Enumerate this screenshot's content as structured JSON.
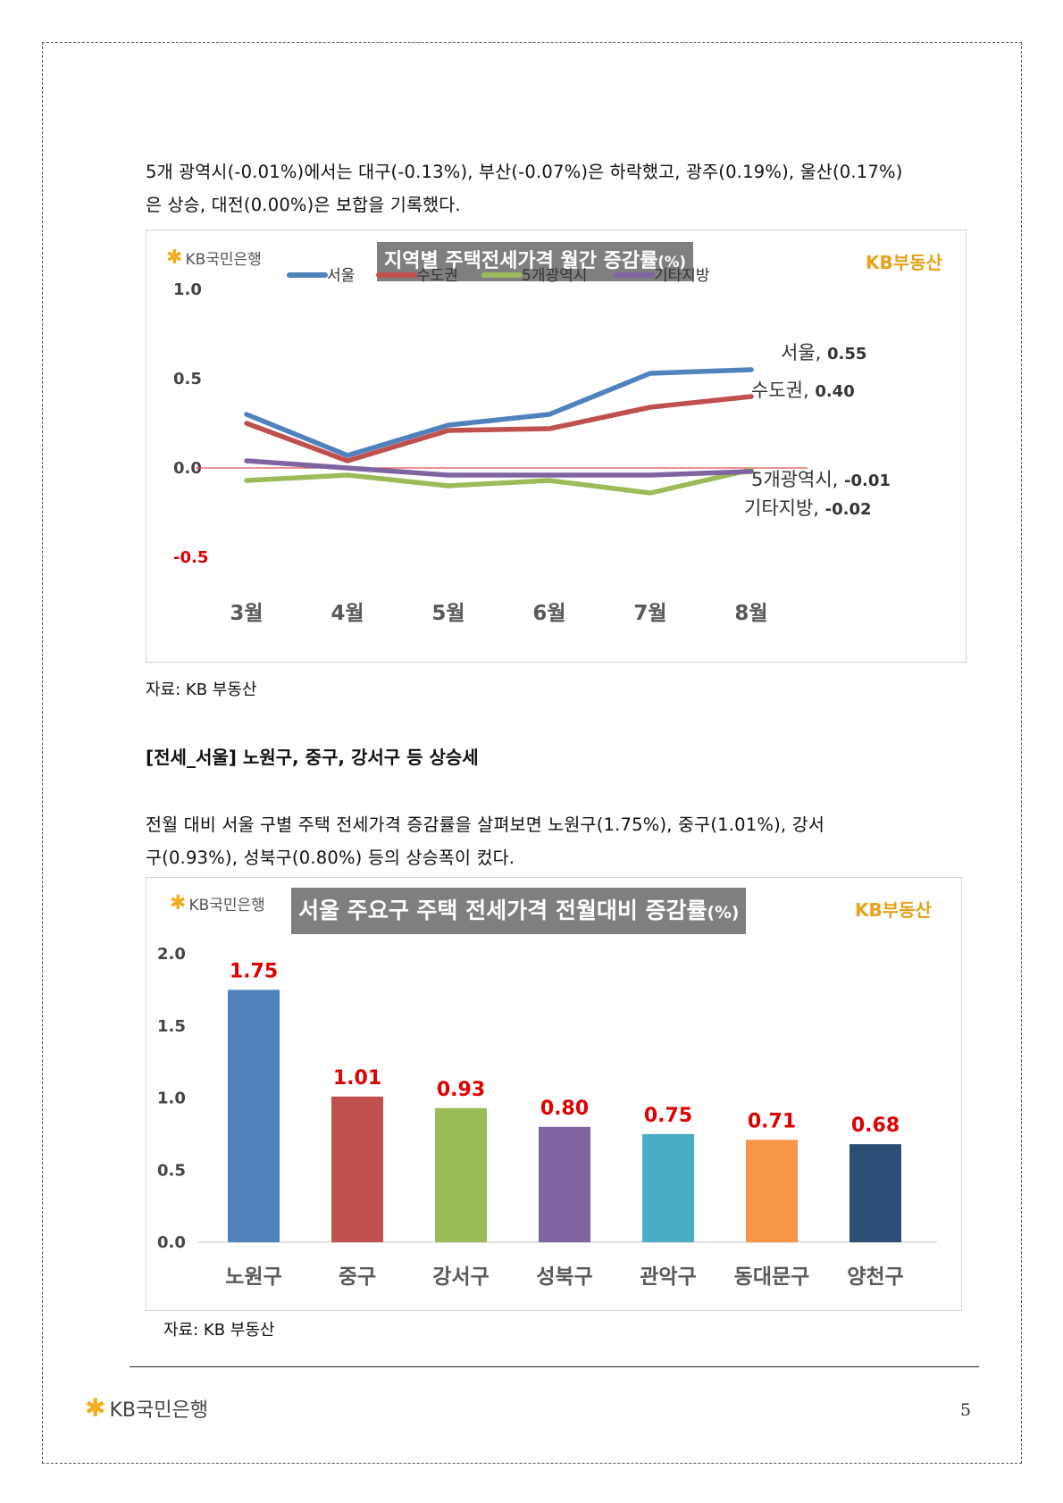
{
  "para1": {
    "line1": "5개 광역시(-0.01%)에서는 대구(-0.13%), 부산(-0.07%)은 하락했고, 광주(0.19%), 울산(0.17%)",
    "line2": "은 상승, 대전(0.00%)은 보합을 기록했다."
  },
  "chart1_header": {
    "logo_text": "KB국민은행",
    "title_main": "지역별 주택전세가격 월간 증감률",
    "title_unit": "(%)",
    "brand": "KB부동산"
  },
  "source1": "자료: KB 부동산",
  "heading": "[전세_서울] 노원구, 중구, 강서구 등 상승세",
  "para2": {
    "line1": "전월 대비 서울 구별 주택 전세가격 증감률을 살펴보면 노원구(1.75%), 중구(1.01%), 강서",
    "line2": "구(0.93%), 성북구(0.80%) 등의 상승폭이 컸다."
  },
  "chart2_header": {
    "logo_text": "KB국민은행",
    "title_main": "서울 주요구 주택 전세가격 전월대비 증감률",
    "title_unit": "(%)",
    "brand": "KB부동산"
  },
  "source2": "자료: KB 부동산",
  "footer": {
    "logo_text": "KB국민은행",
    "page_number": "5"
  },
  "chart_data": [
    {
      "type": "line",
      "title": "지역별 주택전세가격 월간 증감률(%)",
      "categories": [
        "3월",
        "4월",
        "5월",
        "6월",
        "7월",
        "8월"
      ],
      "ylim": [
        -0.5,
        1.0
      ],
      "yticks": [
        "1.0",
        "0.5",
        "0.0",
        "-0.5"
      ],
      "legend_position": "top",
      "series": [
        {
          "name": "서울",
          "color": "#4f81bd",
          "values": [
            0.3,
            0.07,
            0.24,
            0.3,
            0.53,
            0.55
          ],
          "end_label": "서울, 0.55"
        },
        {
          "name": "수도권",
          "color": "#c0504d",
          "values": [
            0.25,
            0.04,
            0.21,
            0.22,
            0.34,
            0.4
          ],
          "end_label": "수도권, 0.40"
        },
        {
          "name": "5개광역시",
          "color": "#9bbb59",
          "values": [
            -0.07,
            -0.04,
            -0.1,
            -0.07,
            -0.14,
            -0.01
          ],
          "end_label": "5개광역시, -0.01"
        },
        {
          "name": "기타지방",
          "color": "#8064a2",
          "values": [
            0.04,
            0.0,
            -0.04,
            -0.04,
            -0.04,
            -0.02
          ],
          "end_label": "기타지방, -0.02"
        }
      ]
    },
    {
      "type": "bar",
      "title": "서울 주요구 주택 전세가격 전월대비 증감률(%)",
      "categories": [
        "노원구",
        "중구",
        "강서구",
        "성북구",
        "관악구",
        "동대문구",
        "양천구"
      ],
      "values": [
        1.75,
        1.01,
        0.93,
        0.8,
        0.75,
        0.71,
        0.68
      ],
      "labels": [
        "1.75",
        "1.01",
        "0.93",
        "0.80",
        "0.75",
        "0.71",
        "0.68"
      ],
      "colors": [
        "#4f81bd",
        "#c0504d",
        "#9bbb59",
        "#8064a2",
        "#4bacc6",
        "#f79646",
        "#2c4d75"
      ],
      "ylim": [
        0,
        2.0
      ],
      "yticks": [
        "2.0",
        "1.5",
        "1.0",
        "0.5",
        "0.0"
      ],
      "label_color": "#e00000"
    }
  ]
}
